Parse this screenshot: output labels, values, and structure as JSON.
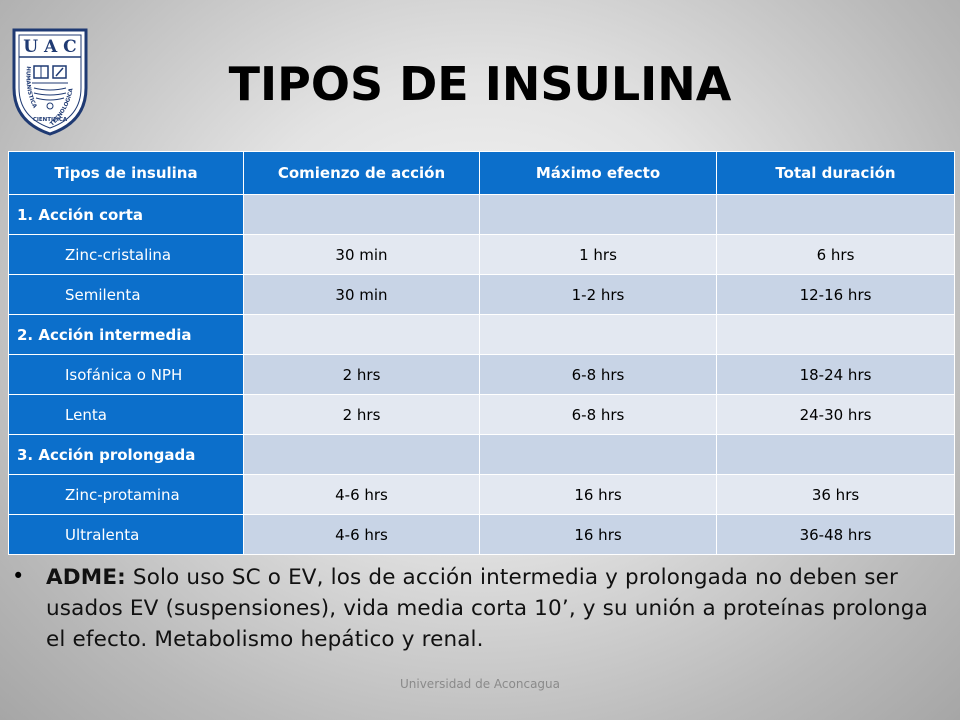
{
  "logo": {
    "acronym": "UAC",
    "ring_left": "HUMANISTICA",
    "ring_right": "TECNOLOGICA",
    "ring_bottom": "CIENTIFICA",
    "color": "#1f3a73"
  },
  "title": "TIPOS DE INSULINA",
  "colors": {
    "header_blue": "#0c6fcb",
    "row_dark": "#c8d4e6",
    "row_light": "#e3e8f1"
  },
  "table": {
    "headers": [
      "Tipos de insulina",
      "Comienzo de acción",
      "Máximo efecto",
      "Total duración"
    ],
    "rows": [
      {
        "type": "group",
        "label": "1. Acción corta",
        "onset": "",
        "peak": "",
        "duration": ""
      },
      {
        "type": "item",
        "label": "Zinc-cristalina",
        "onset": "30 min",
        "peak": "1 hrs",
        "duration": "6 hrs"
      },
      {
        "type": "item",
        "label": "Semilenta",
        "onset": "30 min",
        "peak": "1-2 hrs",
        "duration": "12-16 hrs"
      },
      {
        "type": "group",
        "label": "2. Acción intermedia",
        "onset": "",
        "peak": "",
        "duration": ""
      },
      {
        "type": "item",
        "label": "Isofánica o NPH",
        "onset": "2 hrs",
        "peak": "6-8 hrs",
        "duration": "18-24 hrs"
      },
      {
        "type": "item",
        "label": "Lenta",
        "onset": "2 hrs",
        "peak": "6-8 hrs",
        "duration": "24-30 hrs"
      },
      {
        "type": "group",
        "label": "3. Acción prolongada",
        "onset": "",
        "peak": "",
        "duration": ""
      },
      {
        "type": "item",
        "label": "Zinc-protamina",
        "onset": "4-6 hrs",
        "peak": "16 hrs",
        "duration": "36 hrs"
      },
      {
        "type": "item",
        "label": "Ultralenta",
        "onset": "4-6 hrs",
        "peak": "16 hrs",
        "duration": "36-48 hrs"
      }
    ]
  },
  "bullet": {
    "label": "ADME:",
    "text": " Solo uso SC o EV, los de acción intermedia y prolongada no deben ser usados EV (suspensiones),  vida media corta 10’, y su unión a proteínas prolonga el efecto. Metabolismo hepático y renal."
  },
  "footer": "Universidad de Aconcagua"
}
